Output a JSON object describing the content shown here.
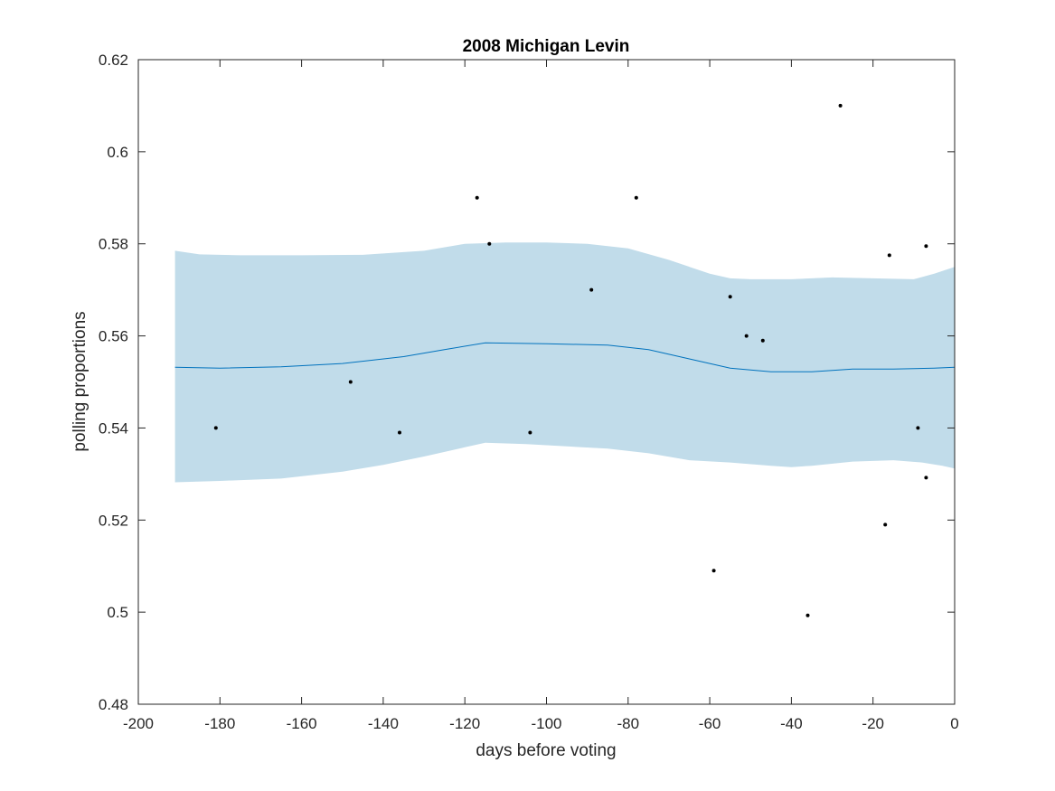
{
  "chart_data": {
    "type": "scatter",
    "title": "2008 Michigan Levin",
    "xlabel": "days before voting",
    "ylabel": "polling proportions",
    "xlim": [
      -200,
      0
    ],
    "ylim": [
      0.48,
      0.62
    ],
    "x_ticks": [
      -200,
      -180,
      -160,
      -140,
      -120,
      -100,
      -80,
      -60,
      -40,
      -20,
      0
    ],
    "y_ticks": [
      0.48,
      0.5,
      0.52,
      0.54,
      0.56,
      0.58,
      0.6,
      0.62
    ],
    "x_tick_labels": [
      "-200",
      "-180",
      "-160",
      "-140",
      "-120",
      "-100",
      "-80",
      "-60",
      "-40",
      "-20",
      "0"
    ],
    "y_tick_labels": [
      "0.48",
      "0.5",
      "0.52",
      "0.54",
      "0.56",
      "0.58",
      "0.6",
      "0.62"
    ],
    "grid": false,
    "colors": {
      "band": "#c1dcea",
      "line": "#0072bd",
      "points": "#000000",
      "axes": "#262626"
    },
    "points": {
      "x": [
        -181,
        -148,
        -136,
        -117,
        -114,
        -104,
        -89,
        -78,
        -59,
        -55,
        -51,
        -47,
        -36,
        -28,
        -17,
        -16,
        -9,
        -7,
        -7
      ],
      "y": [
        0.54,
        0.55,
        0.539,
        0.59,
        0.58,
        0.539,
        0.57,
        0.59,
        0.509,
        0.5685,
        0.56,
        0.559,
        0.4993,
        0.61,
        0.519,
        0.5775,
        0.54,
        0.5795,
        0.5292
      ]
    },
    "mean_line": {
      "x": [
        -191,
        -180,
        -165,
        -150,
        -135,
        -125,
        -115,
        -100,
        -85,
        -75,
        -65,
        -55,
        -45,
        -35,
        -25,
        -15,
        -5,
        0
      ],
      "y": [
        0.5532,
        0.553,
        0.5533,
        0.554,
        0.5555,
        0.557,
        0.5585,
        0.5583,
        0.558,
        0.557,
        0.555,
        0.553,
        0.5522,
        0.5522,
        0.5528,
        0.5528,
        0.553,
        0.5532
      ]
    },
    "band_upper": {
      "x": [
        -191,
        -185,
        -175,
        -160,
        -145,
        -130,
        -120,
        -110,
        -100,
        -90,
        -80,
        -70,
        -60,
        -55,
        -50,
        -40,
        -30,
        -20,
        -10,
        -5,
        0
      ],
      "y": [
        0.5785,
        0.5777,
        0.5775,
        0.5775,
        0.5776,
        0.5785,
        0.58,
        0.5803,
        0.5803,
        0.58,
        0.579,
        0.5765,
        0.5735,
        0.5725,
        0.5723,
        0.5723,
        0.5727,
        0.5725,
        0.5723,
        0.5735,
        0.575
      ]
    },
    "band_lower": {
      "x": [
        -191,
        -180,
        -165,
        -150,
        -140,
        -130,
        -120,
        -115,
        -105,
        -95,
        -85,
        -75,
        -65,
        -55,
        -45,
        -40,
        -35,
        -25,
        -15,
        -8,
        -3,
        0
      ],
      "y": [
        0.5282,
        0.5285,
        0.529,
        0.5305,
        0.532,
        0.5338,
        0.5358,
        0.5368,
        0.5365,
        0.536,
        0.5355,
        0.5345,
        0.533,
        0.5325,
        0.5318,
        0.5315,
        0.5318,
        0.5327,
        0.533,
        0.5325,
        0.5318,
        0.5312
      ]
    }
  }
}
